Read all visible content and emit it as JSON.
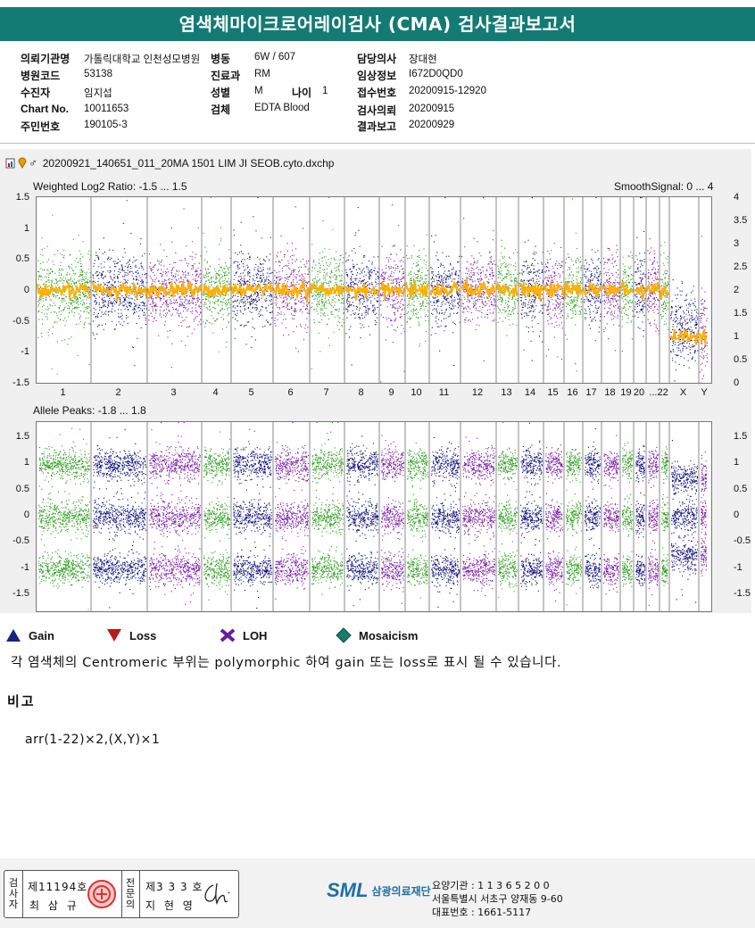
{
  "title": "염색체마이크로어레이검사 (CMA) 검사결과보고서",
  "header": {
    "fields": [
      {
        "label": "의뢰기관명",
        "value": "가톨릭대학교 인천성모병원"
      },
      {
        "label": "병동",
        "value": "6W / 607"
      },
      {
        "label": "담당의사",
        "value": "장대현"
      },
      {
        "label": "병원코드",
        "value": "53138"
      },
      {
        "label": "진료과",
        "value": "RM"
      },
      {
        "label": "임상정보",
        "value": "I672D0QD0"
      },
      {
        "label": "수진자",
        "value": "임지섭"
      },
      {
        "label": "성별",
        "value": "M"
      },
      {
        "label": "나이",
        "value": "1"
      },
      {
        "label": "접수번호",
        "value": "20200915-12920"
      },
      {
        "label": "Chart No.",
        "value": "10011653"
      },
      {
        "label": "검체",
        "value": "EDTA Blood"
      },
      {
        "label": "검사의뢰",
        "value": "20200915"
      },
      {
        "label": "주민번호",
        "value": "190105-3"
      },
      {
        "label": "결과보고",
        "value": "20200929"
      }
    ]
  },
  "viewer": {
    "filename": "20200921_140651_011_20MA 1501 LIM JI SEOB.cyto.dxchp",
    "icons": [
      "file-chart-icon",
      "pin-icon",
      "male-icon"
    ]
  },
  "chart_data": [
    {
      "type": "scatter",
      "title": "Weighted Log2 Ratio: -1.5 ... 1.5",
      "right_title": "SmoothSignal: 0 ... 4",
      "ylim": [
        -1.5,
        1.5
      ],
      "y2lim": [
        0,
        4
      ],
      "yticks": [
        "1.5",
        "1",
        "0.5",
        "0",
        "-0.5",
        "-1",
        "-1.5"
      ],
      "y2ticks": [
        "4",
        "3.5",
        "3",
        "2.5",
        "2",
        "1.5",
        "1",
        "0.5",
        "0"
      ],
      "categories": [
        "1",
        "2",
        "3",
        "4",
        "5",
        "6",
        "7",
        "8",
        "9",
        "10",
        "11",
        "12",
        "13",
        "14",
        "15",
        "16",
        "17",
        "18",
        "19",
        "20",
        "...22",
        "X",
        "Y"
      ],
      "chromosomes": [
        "1",
        "2",
        "3",
        "4",
        "5",
        "6",
        "7",
        "8",
        "9",
        "10",
        "11",
        "12",
        "13",
        "14",
        "15",
        "16",
        "17",
        "18",
        "19",
        "20",
        "21",
        "22",
        "X",
        "Y"
      ],
      "log2_center": [
        0,
        0,
        0,
        0,
        0,
        0,
        0,
        0,
        0,
        0,
        0,
        0,
        0,
        0,
        0,
        0,
        0,
        0,
        0,
        0,
        0,
        0,
        -0.62,
        -0.62
      ],
      "smooth_signal": [
        2,
        2,
        2,
        2,
        2,
        2,
        2,
        2,
        2,
        2,
        2,
        2,
        2,
        2,
        2,
        2,
        2,
        2,
        2,
        2,
        2,
        2,
        1,
        1
      ],
      "colors": [
        "#2e9e1f",
        "#0d0d7a",
        "#7a1aa6"
      ],
      "smooth_color": "#ffb000",
      "grid": false
    },
    {
      "type": "scatter",
      "title": "Allele Peaks: -1.8 ... 1.8",
      "ylim": [
        -1.8,
        1.8
      ],
      "yticks": [
        "1.5",
        "1",
        "0.5",
        "0",
        "-0.5",
        "-1",
        "-1.5"
      ],
      "y2ticks": [
        "1.5",
        "1",
        "0.5",
        "0",
        "-0.5",
        "-1",
        "-1.5"
      ],
      "peaks": [
        1,
        0,
        -1
      ],
      "sex_chrom_peaks": [
        0.75,
        0,
        -0.75
      ],
      "colors": [
        "#2e9e1f",
        "#0d0d7a",
        "#7a1aa6"
      ],
      "grid": false
    }
  ],
  "legend": [
    {
      "label": "Gain",
      "icon": "gain-triangle-icon",
      "color": "#1a237e"
    },
    {
      "label": "Loss",
      "icon": "loss-triangle-icon",
      "color": "#b71c1c"
    },
    {
      "label": "LOH",
      "icon": "loh-x-icon",
      "color": "#6a1b9a"
    },
    {
      "label": "Mosaicism",
      "icon": "mosaicism-diamond-icon",
      "color": "#1b7a6e"
    }
  ],
  "note": "각 염색체의 Centromeric 부위는 polymorphic 하여 gain 또는 loss로 표시 될 수 있습니다.",
  "remarks": {
    "heading": "비고",
    "karyotype": "arr(1-22)×2,(X,Y)×1"
  },
  "signatures": {
    "left_label": "검사자",
    "left_line1": "제11194호",
    "left_line2": "최 삼 규",
    "mid_label": "전문의",
    "right_line1": "제3 3 3 호",
    "right_line2": "지 현 영"
  },
  "institution": {
    "logo": "SML",
    "name": "삼광의료재단",
    "line1": "요양기관 : 1 1 3 6 5 2 0 0",
    "line2": "서울특별시 서초구 양재동 9-60",
    "line3": "대표번호 : 1661-5117"
  }
}
